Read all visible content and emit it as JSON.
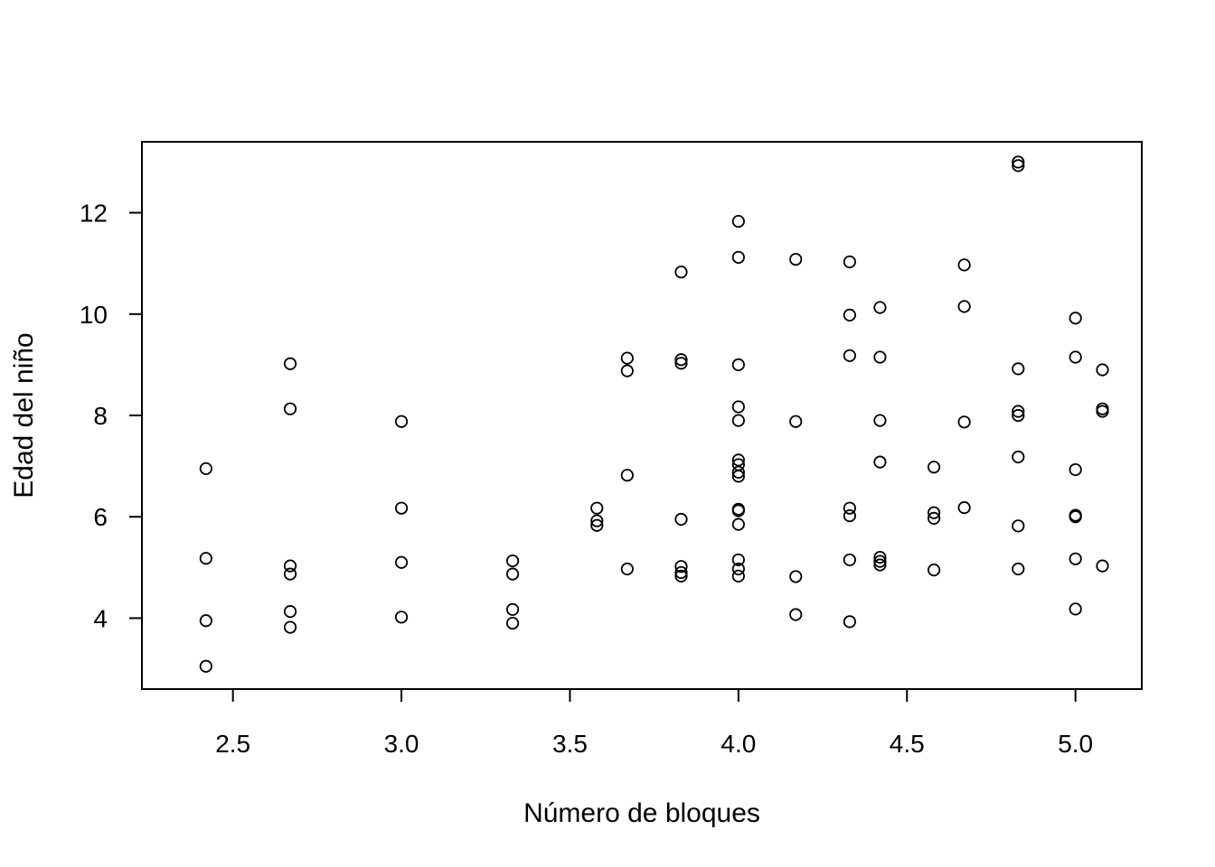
{
  "chart_data": {
    "type": "scatter",
    "title": "",
    "xlabel": "Número de bloques",
    "ylabel": "Edad del niño",
    "xlim": [
      2.23,
      5.1967
    ],
    "ylim": [
      2.6,
      13.4
    ],
    "xticks": [
      2.5,
      3.0,
      3.5,
      4.0,
      4.5,
      5.0
    ],
    "xtick_labels": [
      "2.5",
      "3.0",
      "3.5",
      "4.0",
      "4.5",
      "5.0"
    ],
    "yticks": [
      4,
      6,
      8,
      10,
      12
    ],
    "ytick_labels": [
      "4",
      "6",
      "8",
      "10",
      "12"
    ],
    "grid": false,
    "legend": "none",
    "marker": "open-circle",
    "points": [
      [
        2.42,
        6.95
      ],
      [
        2.42,
        5.18
      ],
      [
        2.42,
        3.95
      ],
      [
        2.42,
        3.05
      ],
      [
        2.67,
        9.02
      ],
      [
        2.67,
        8.13
      ],
      [
        2.67,
        5.03
      ],
      [
        2.67,
        4.87
      ],
      [
        2.67,
        4.13
      ],
      [
        2.67,
        3.82
      ],
      [
        3.0,
        7.88
      ],
      [
        3.0,
        6.17
      ],
      [
        3.0,
        5.1
      ],
      [
        3.0,
        4.02
      ],
      [
        3.33,
        5.13
      ],
      [
        3.33,
        4.87
      ],
      [
        3.33,
        4.17
      ],
      [
        3.33,
        3.9
      ],
      [
        3.58,
        6.17
      ],
      [
        3.58,
        5.92
      ],
      [
        3.58,
        5.83
      ],
      [
        3.67,
        9.13
      ],
      [
        3.67,
        8.88
      ],
      [
        3.67,
        6.82
      ],
      [
        3.67,
        4.97
      ],
      [
        3.83,
        10.83
      ],
      [
        3.83,
        9.1
      ],
      [
        3.83,
        9.03
      ],
      [
        3.83,
        5.95
      ],
      [
        3.83,
        5.02
      ],
      [
        3.83,
        4.9
      ],
      [
        3.83,
        4.83
      ],
      [
        4.0,
        11.83
      ],
      [
        4.0,
        11.12
      ],
      [
        4.0,
        9.0
      ],
      [
        4.0,
        8.17
      ],
      [
        4.0,
        7.9
      ],
      [
        4.0,
        7.12
      ],
      [
        4.0,
        7.03
      ],
      [
        4.0,
        6.88
      ],
      [
        4.0,
        6.8
      ],
      [
        4.0,
        6.15
      ],
      [
        4.0,
        6.12
      ],
      [
        4.0,
        5.85
      ],
      [
        4.0,
        5.15
      ],
      [
        4.0,
        4.97
      ],
      [
        4.0,
        4.83
      ],
      [
        4.17,
        11.08
      ],
      [
        4.17,
        7.88
      ],
      [
        4.17,
        4.82
      ],
      [
        4.17,
        4.07
      ],
      [
        4.33,
        11.03
      ],
      [
        4.33,
        9.98
      ],
      [
        4.33,
        9.18
      ],
      [
        4.33,
        6.17
      ],
      [
        4.33,
        6.02
      ],
      [
        4.33,
        5.15
      ],
      [
        4.33,
        3.93
      ],
      [
        4.42,
        10.13
      ],
      [
        4.42,
        9.15
      ],
      [
        4.42,
        7.9
      ],
      [
        4.42,
        7.08
      ],
      [
        4.42,
        5.2
      ],
      [
        4.42,
        5.12
      ],
      [
        4.42,
        5.05
      ],
      [
        4.58,
        6.98
      ],
      [
        4.58,
        6.08
      ],
      [
        4.58,
        5.97
      ],
      [
        4.58,
        4.95
      ],
      [
        4.67,
        10.97
      ],
      [
        4.67,
        10.15
      ],
      [
        4.67,
        7.87
      ],
      [
        4.67,
        6.18
      ],
      [
        4.83,
        13.0
      ],
      [
        4.83,
        12.93
      ],
      [
        4.83,
        8.92
      ],
      [
        4.83,
        8.08
      ],
      [
        4.83,
        8.0
      ],
      [
        4.83,
        7.18
      ],
      [
        4.83,
        5.82
      ],
      [
        4.83,
        4.97
      ],
      [
        5.0,
        9.92
      ],
      [
        5.0,
        9.15
      ],
      [
        5.0,
        6.93
      ],
      [
        5.0,
        6.03
      ],
      [
        5.0,
        6.0
      ],
      [
        5.0,
        5.17
      ],
      [
        5.0,
        4.18
      ],
      [
        5.08,
        8.9
      ],
      [
        5.08,
        8.13
      ],
      [
        5.08,
        8.08
      ],
      [
        5.08,
        5.03
      ]
    ]
  }
}
